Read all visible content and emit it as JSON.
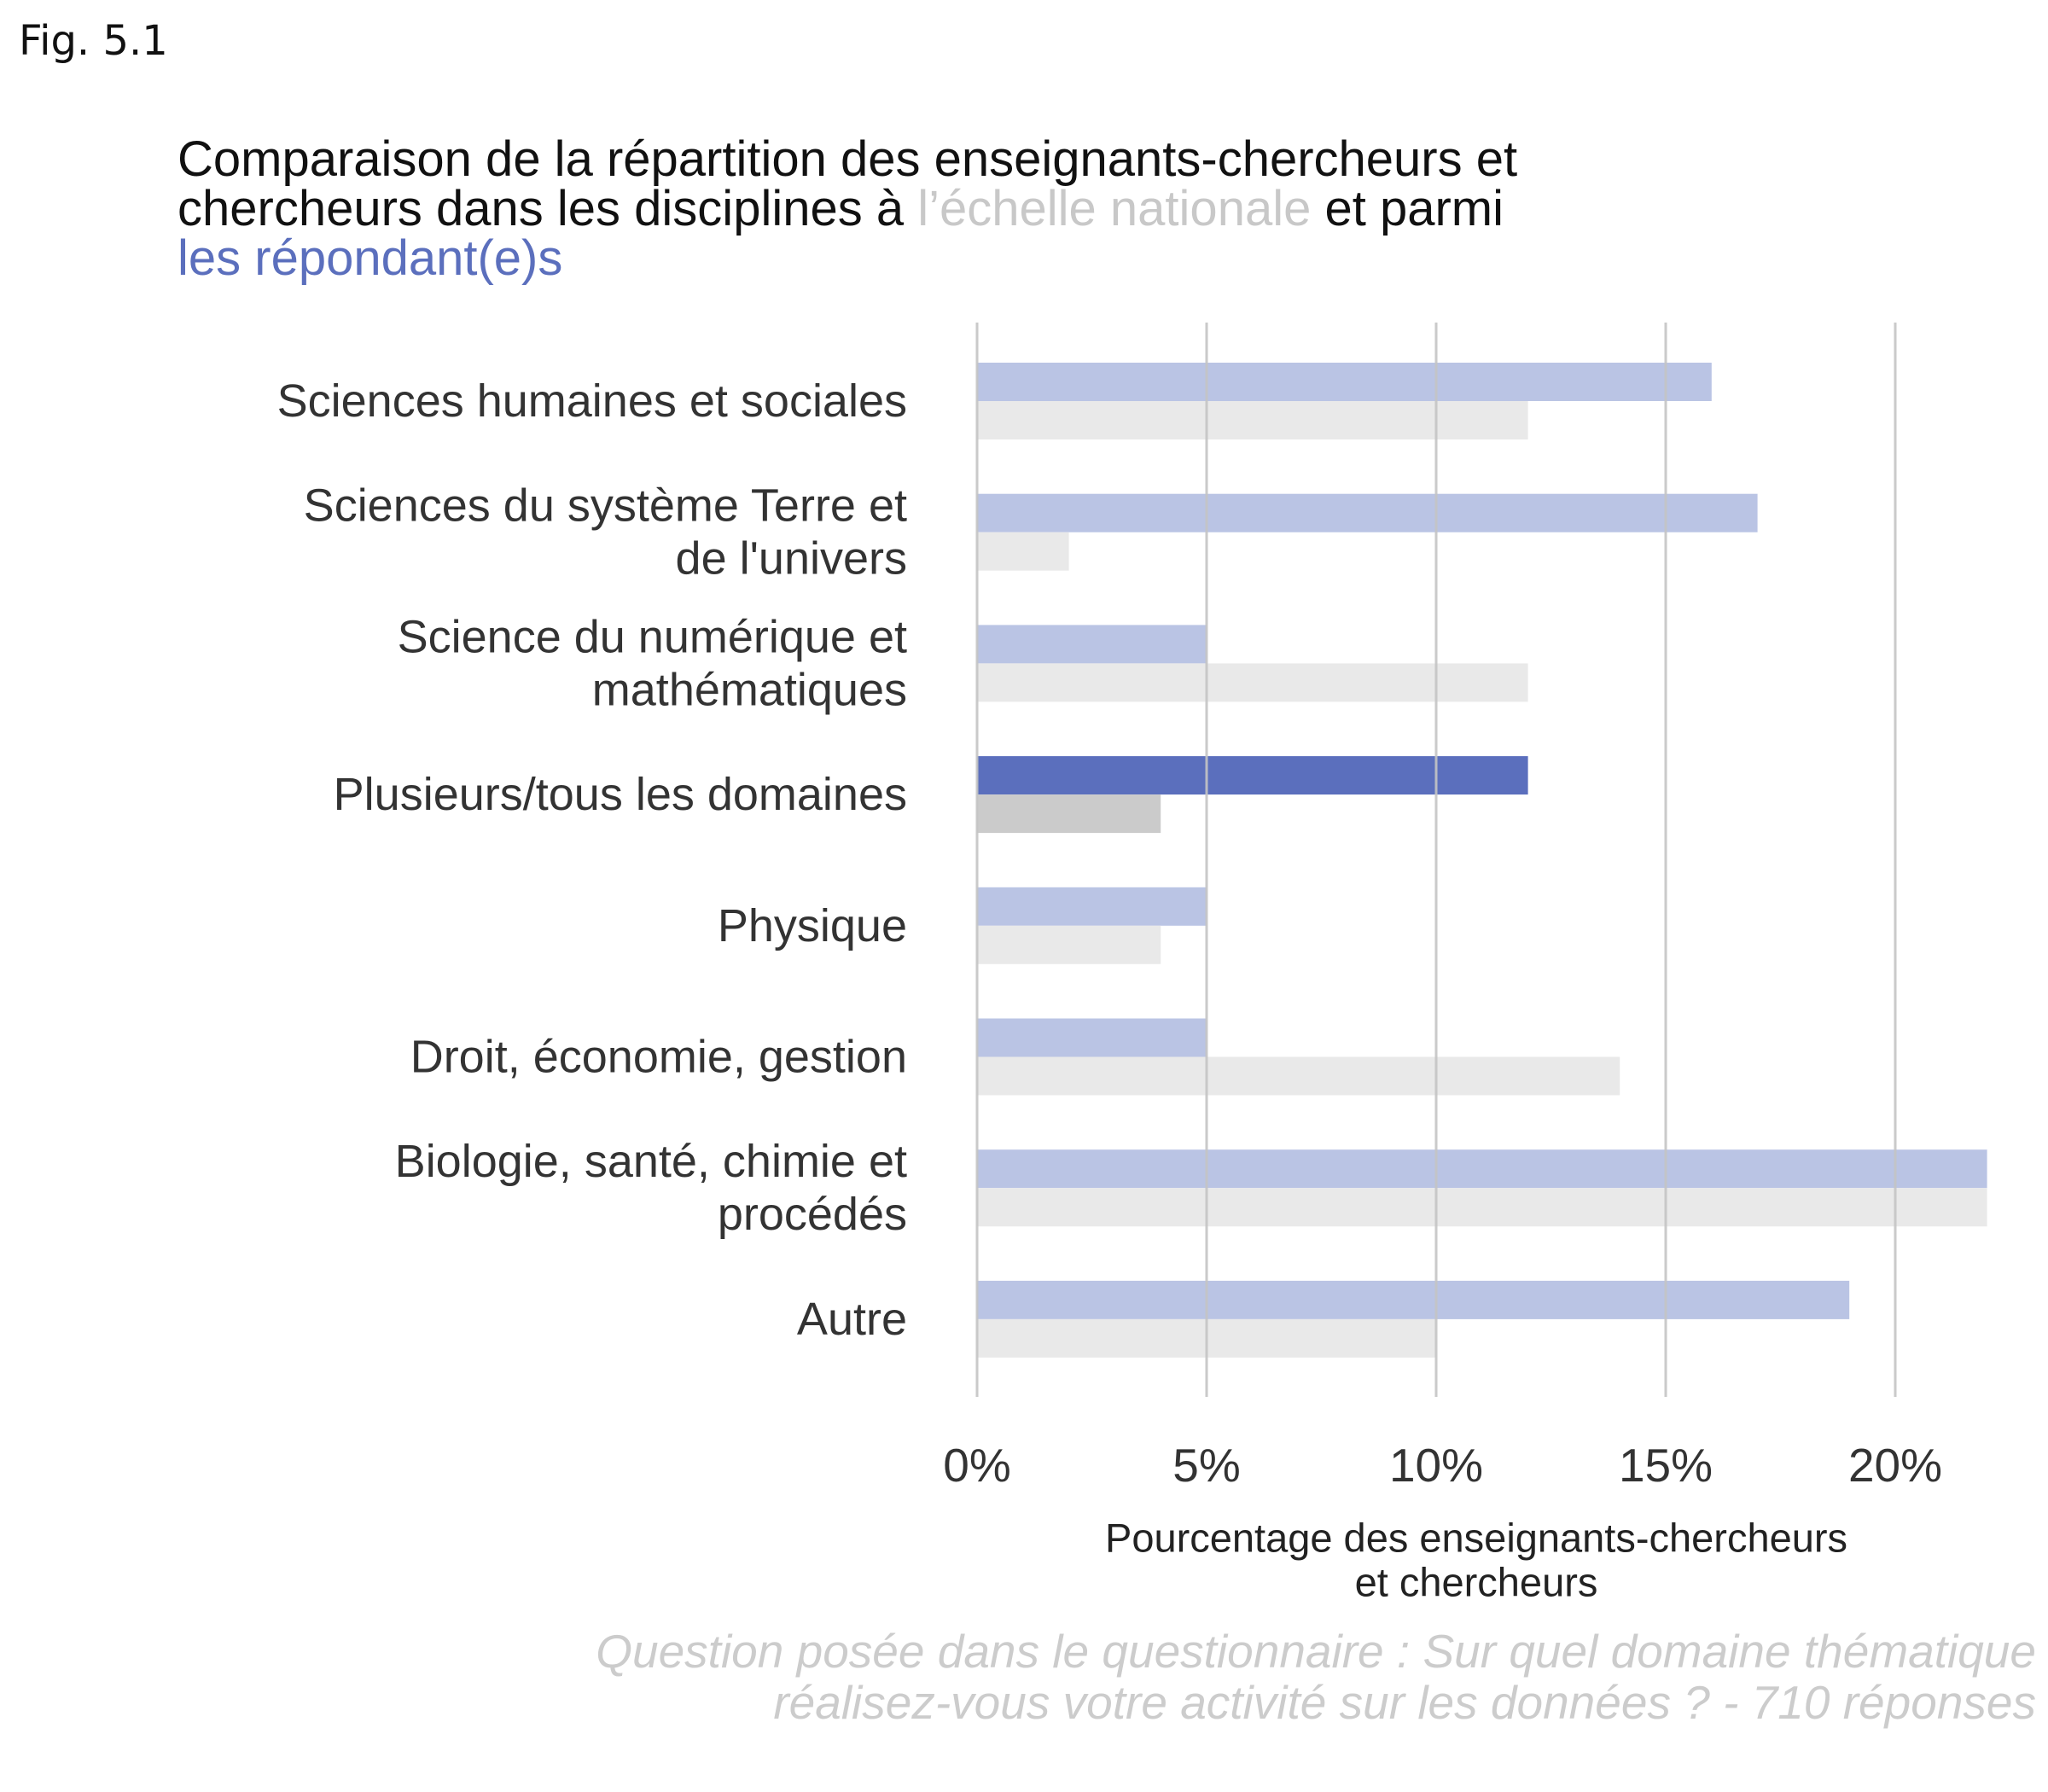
{
  "figure_label": "Fig. 5.1",
  "title": {
    "line1": "Comparaison de la répartition des enseignants-chercheurs et",
    "line2_a": "chercheurs dans les disciplines à ",
    "line2_grey": "l’échelle nationale",
    "line2_b": " et parmi",
    "line3_blue": "les répondant(e)s"
  },
  "colors": {
    "respondents": "#bac4e4",
    "respondents_highlight": "#5b6fbd",
    "national": "#e9e9e9",
    "national_highlight": "#cbcbcb",
    "grid": "#c4c4c4",
    "title_grey": "#c8c8c8",
    "title_blue": "#5b6fbd",
    "caption": "#cccccc"
  },
  "chart_data": {
    "type": "bar",
    "orientation": "horizontal",
    "categories": [
      [
        "Sciences humaines et sociales"
      ],
      [
        "Sciences du système Terre et",
        "de l'univers"
      ],
      [
        "Science du numérique et",
        "mathématiques"
      ],
      [
        "Plusieurs/tous les domaines"
      ],
      [
        "Physique"
      ],
      [
        "Droit, économie, gestion"
      ],
      [
        "Biologie, santé, chimie et",
        "procédés"
      ],
      [
        "Autre"
      ]
    ],
    "series": [
      {
        "name": "les répondant(e)s",
        "values": [
          16,
          17,
          5,
          12,
          5,
          5,
          22,
          19
        ]
      },
      {
        "name": "l’échelle nationale",
        "values": [
          12,
          2,
          12,
          4,
          4,
          14,
          22,
          10
        ]
      }
    ],
    "highlight_index": 3,
    "xlim": [
      0,
      22
    ],
    "xticks": [
      0,
      5,
      10,
      15,
      20
    ],
    "xtick_labels": [
      "0%",
      "5%",
      "10%",
      "15%",
      "20%"
    ],
    "xlabel": [
      "Pourcentage des enseignants-chercheurs",
      "et chercheurs"
    ],
    "grid": "vertical"
  },
  "caption": {
    "line1": "Question posée dans le questionnaire : Sur quel domaine thématique",
    "line2": "réalisez-vous votre activité sur les données ? - 710 réponses"
  }
}
